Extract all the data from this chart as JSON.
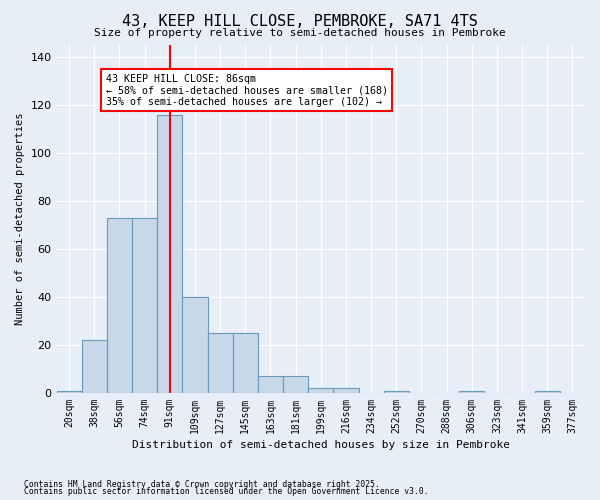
{
  "title": "43, KEEP HILL CLOSE, PEMBROKE, SA71 4TS",
  "subtitle": "Size of property relative to semi-detached houses in Pembroke",
  "xlabel": "Distribution of semi-detached houses by size in Pembroke",
  "ylabel": "Number of semi-detached properties",
  "bins": [
    "20sqm",
    "38sqm",
    "56sqm",
    "74sqm",
    "91sqm",
    "109sqm",
    "127sqm",
    "145sqm",
    "163sqm",
    "181sqm",
    "199sqm",
    "216sqm",
    "234sqm",
    "252sqm",
    "270sqm",
    "288sqm",
    "306sqm",
    "323sqm",
    "341sqm",
    "359sqm",
    "377sqm"
  ],
  "values": [
    1,
    22,
    73,
    73,
    116,
    40,
    25,
    25,
    7,
    7,
    2,
    2,
    0,
    1,
    0,
    0,
    1,
    0,
    0,
    1,
    0
  ],
  "bar_color": "#c8d8e8",
  "bar_edge_color": "#6699bb",
  "red_line_x": 4,
  "ylim": [
    0,
    145
  ],
  "yticks": [
    0,
    20,
    40,
    60,
    80,
    100,
    120,
    140
  ],
  "annotation_line1": "43 KEEP HILL CLOSE: 86sqm",
  "annotation_line2": "← 58% of semi-detached houses are smaller (168)",
  "annotation_line3": "35% of semi-detached houses are larger (102) →",
  "footnote1": "Contains HM Land Registry data © Crown copyright and database right 2025.",
  "footnote2": "Contains public sector information licensed under the Open Government Licence v3.0.",
  "bg_color": "#e8eef8"
}
